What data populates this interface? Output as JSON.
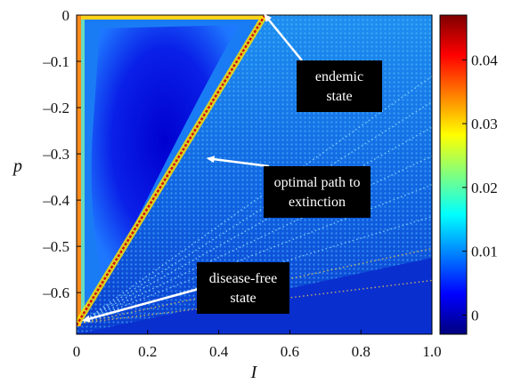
{
  "chart_data": {
    "type": "heatmap",
    "title": "",
    "xlabel": "I",
    "ylabel": "p",
    "xlim": [
      0,
      1.0
    ],
    "ylim": [
      -0.69,
      0
    ],
    "x_ticks": [
      "0",
      "0.2",
      "0.4",
      "0.6",
      "0.8",
      "1.0"
    ],
    "x_tick_values": [
      0,
      0.2,
      0.4,
      0.6,
      0.8,
      1.0
    ],
    "y_ticks": [
      "0",
      "–0.1",
      "–0.2",
      "–0.3",
      "–0.4",
      "–0.5",
      "–0.6"
    ],
    "y_tick_values": [
      0,
      -0.1,
      -0.2,
      -0.3,
      -0.4,
      -0.5,
      -0.6
    ],
    "colorbar": {
      "range": [
        -0.003,
        0.047
      ],
      "ticks": [
        "0",
        "0.01",
        "0.02",
        "0.03",
        "0.04"
      ],
      "tick_values": [
        0,
        0.01,
        0.02,
        0.03,
        0.04
      ],
      "colormap": "jet"
    },
    "optimal_path": {
      "from": [
        0.53,
        0.0
      ],
      "to": [
        0.0,
        -0.67
      ]
    },
    "annotations": [
      {
        "text": [
          "endemic",
          "state"
        ],
        "arrow_to": [
          0.53,
          0.0
        ]
      },
      {
        "text": [
          "optimal path to",
          "extinction"
        ],
        "arrow_to": [
          0.37,
          -0.31
        ]
      },
      {
        "text": [
          "disease-free",
          "state"
        ],
        "arrow_to": [
          0.02,
          -0.66
        ]
      }
    ]
  }
}
